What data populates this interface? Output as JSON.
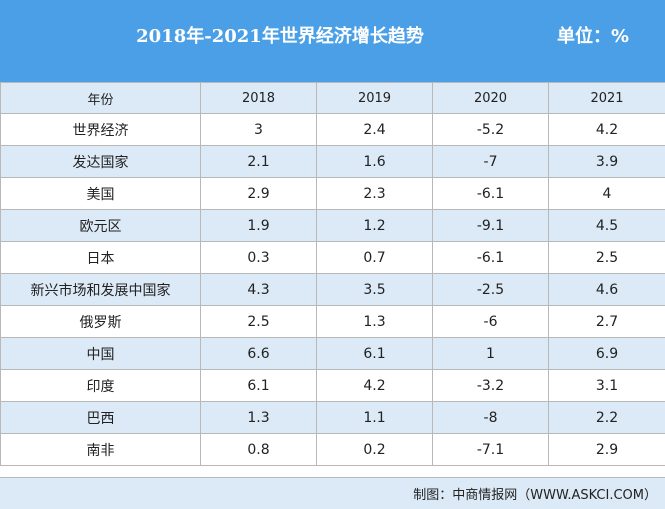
{
  "chart_data": {
    "type": "table",
    "title": "2018年-2021年世界经济增长趋势",
    "unit": "单位：%",
    "columns": [
      "年份",
      "2018",
      "2019",
      "2020",
      "2021"
    ],
    "rows": [
      {
        "name": "世界经济",
        "values": [
          "3",
          "2.4",
          "-5.2",
          "4.2"
        ]
      },
      {
        "name": "发达国家",
        "values": [
          "2.1",
          "1.6",
          "-7",
          "3.9"
        ]
      },
      {
        "name": "美国",
        "values": [
          "2.9",
          "2.3",
          "-6.1",
          "4"
        ]
      },
      {
        "name": "欧元区",
        "values": [
          "1.9",
          "1.2",
          "-9.1",
          "4.5"
        ]
      },
      {
        "name": "日本",
        "values": [
          "0.3",
          "0.7",
          "-6.1",
          "2.5"
        ]
      },
      {
        "name": "新兴市场和发展中国家",
        "values": [
          "4.3",
          "3.5",
          "-2.5",
          "4.6"
        ]
      },
      {
        "name": "俄罗斯",
        "values": [
          "2.5",
          "1.3",
          "-6",
          "2.7"
        ]
      },
      {
        "name": "中国",
        "values": [
          "6.6",
          "6.1",
          "1",
          "6.9"
        ]
      },
      {
        "name": "印度",
        "values": [
          "6.1",
          "4.2",
          "-3.2",
          "3.1"
        ]
      },
      {
        "name": "巴西",
        "values": [
          "1.3",
          "1.1",
          "-8",
          "2.2"
        ]
      },
      {
        "name": "南非",
        "values": [
          "0.8",
          "0.2",
          "-7.1",
          "2.9"
        ]
      }
    ],
    "source": "制图：中商情报网（WWW.ASKCI.COM）"
  },
  "colors": {
    "header_bg": "#4a9fe6",
    "stripe_bg": "#dce9f7",
    "border": "#b8b8b8"
  }
}
